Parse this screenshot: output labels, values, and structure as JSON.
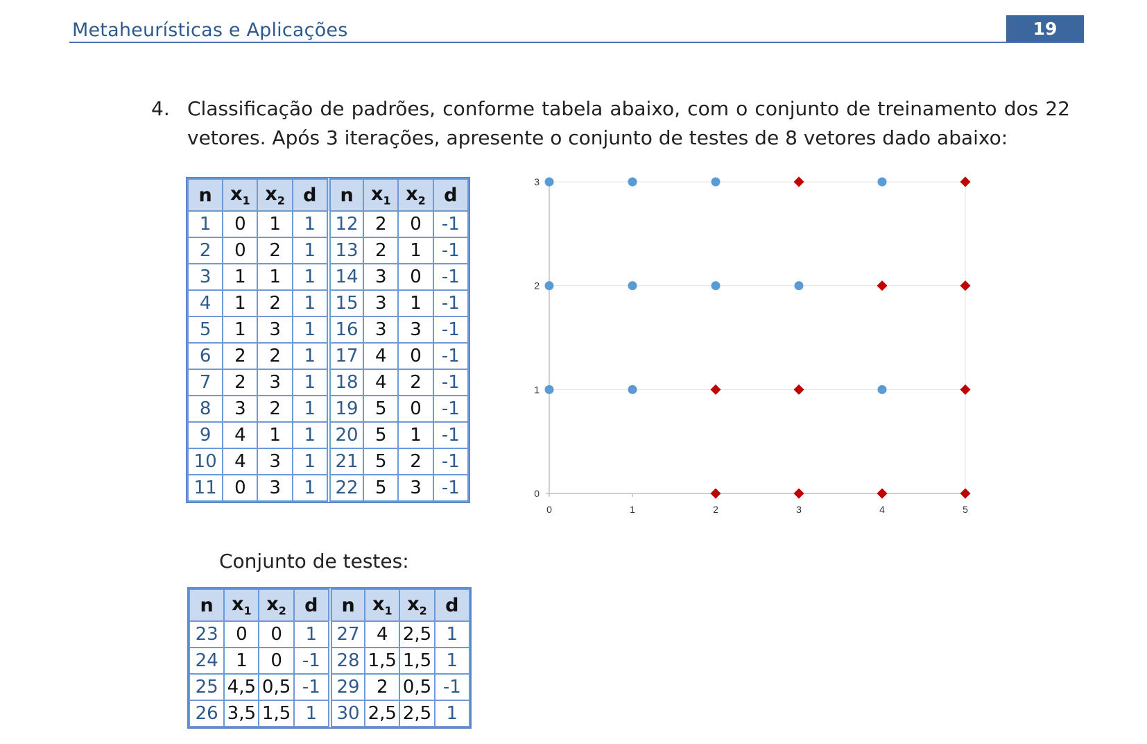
{
  "header": {
    "title": "Metaheurísticas e Aplicações",
    "page_number": "19"
  },
  "question": {
    "number": "4.",
    "text": "Classificação de padrões, conforme tabela abaixo, com o conjunto de treinamento dos 22 vetores. Após 3 iterações, apresente o conjunto de testes de 8 vetores dado abaixo:"
  },
  "table_headers": {
    "n": "n",
    "x": "x",
    "sub1": "1",
    "sub2": "2",
    "d": "d"
  },
  "training_table": {
    "rows": [
      [
        "1",
        "0",
        "1",
        "1",
        "12",
        "2",
        "0",
        "-1"
      ],
      [
        "2",
        "0",
        "2",
        "1",
        "13",
        "2",
        "1",
        "-1"
      ],
      [
        "3",
        "1",
        "1",
        "1",
        "14",
        "3",
        "0",
        "-1"
      ],
      [
        "4",
        "1",
        "2",
        "1",
        "15",
        "3",
        "1",
        "-1"
      ],
      [
        "5",
        "1",
        "3",
        "1",
        "16",
        "3",
        "3",
        "-1"
      ],
      [
        "6",
        "2",
        "2",
        "1",
        "17",
        "4",
        "0",
        "-1"
      ],
      [
        "7",
        "2",
        "3",
        "1",
        "18",
        "4",
        "2",
        "-1"
      ],
      [
        "8",
        "3",
        "2",
        "1",
        "19",
        "5",
        "0",
        "-1"
      ],
      [
        "9",
        "4",
        "1",
        "1",
        "20",
        "5",
        "1",
        "-1"
      ],
      [
        "10",
        "4",
        "3",
        "1",
        "21",
        "5",
        "2",
        "-1"
      ],
      [
        "11",
        "0",
        "3",
        "1",
        "22",
        "5",
        "3",
        "-1"
      ]
    ]
  },
  "test_heading": "Conjunto de testes:",
  "test_table": {
    "rows": [
      [
        "23",
        "0",
        "0",
        "1",
        "27",
        "4",
        "2,5",
        "1"
      ],
      [
        "24",
        "1",
        "0",
        "-1",
        "28",
        "1,5",
        "1,5",
        "1"
      ],
      [
        "25",
        "4,5",
        "0,5",
        "-1",
        "29",
        "2",
        "0,5",
        "-1"
      ],
      [
        "26",
        "3,5",
        "1,5",
        "1",
        "30",
        "2,5",
        "2,5",
        "1"
      ]
    ]
  },
  "chart_data": {
    "type": "scatter",
    "title": "",
    "xlabel": "",
    "ylabel": "",
    "xlim": [
      0,
      5
    ],
    "ylim": [
      0,
      3
    ],
    "x_ticks": [
      "0",
      "1",
      "2",
      "3",
      "4",
      "5"
    ],
    "y_ticks": [
      "0",
      "1",
      "2",
      "3"
    ],
    "grid": true,
    "legend": "none",
    "series": [
      {
        "marker": "circle",
        "color": "#5b9bd5",
        "points": [
          [
            0,
            1
          ],
          [
            0,
            2
          ],
          [
            1,
            1
          ],
          [
            1,
            2
          ],
          [
            1,
            3
          ],
          [
            2,
            2
          ],
          [
            2,
            3
          ],
          [
            3,
            2
          ],
          [
            4,
            1
          ],
          [
            4,
            3
          ],
          [
            0,
            3
          ]
        ]
      },
      {
        "marker": "diamond",
        "color": "#c00000",
        "points": [
          [
            2,
            0
          ],
          [
            2,
            1
          ],
          [
            3,
            0
          ],
          [
            3,
            1
          ],
          [
            3,
            3
          ],
          [
            4,
            0
          ],
          [
            4,
            2
          ],
          [
            5,
            0
          ],
          [
            5,
            1
          ],
          [
            5,
            2
          ],
          [
            5,
            3
          ]
        ]
      }
    ]
  }
}
